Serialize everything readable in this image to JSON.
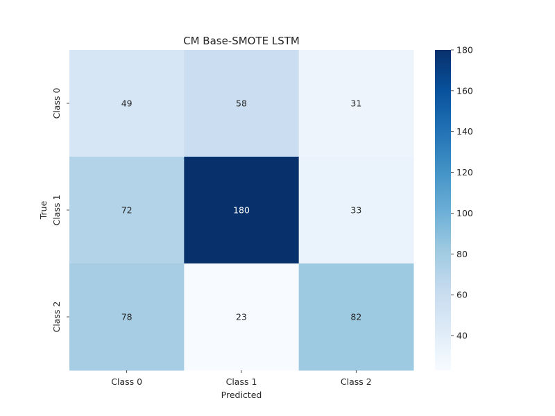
{
  "chart_data": {
    "type": "heatmap",
    "title": "CM Base-SMOTE LSTM",
    "xlabel": "Predicted",
    "ylabel": "True",
    "x_categories": [
      "Class 0",
      "Class 1",
      "Class 2"
    ],
    "y_categories": [
      "Class 0",
      "Class 1",
      "Class 2"
    ],
    "values": [
      [
        49,
        58,
        31
      ],
      [
        72,
        180,
        33
      ],
      [
        78,
        23,
        82
      ]
    ],
    "colormap": "Blues",
    "color_range": [
      23,
      180
    ],
    "colorbar_ticks": [
      40,
      60,
      80,
      100,
      120,
      140,
      160,
      180
    ],
    "grid": false,
    "colorbar_position": "right"
  }
}
